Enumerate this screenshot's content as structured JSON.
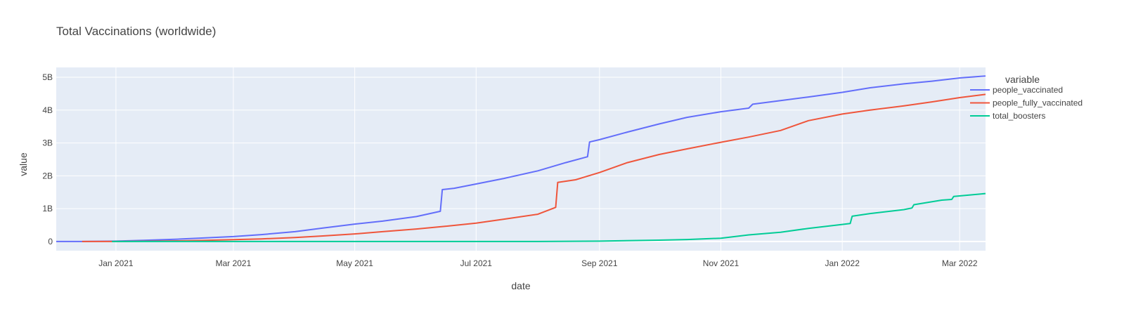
{
  "chart_data": {
    "type": "line",
    "title": "Total Vaccinations (worldwide)",
    "xlabel": "date",
    "ylabel": "value",
    "x_range": [
      "2020-12-02",
      "2022-03-14"
    ],
    "ylim": [
      -280000000,
      5300000000
    ],
    "x_ticks": [
      {
        "date": "2021-01-01",
        "label": "Jan 2021"
      },
      {
        "date": "2021-03-01",
        "label": "Mar 2021"
      },
      {
        "date": "2021-05-01",
        "label": "May 2021"
      },
      {
        "date": "2021-07-01",
        "label": "Jul 2021"
      },
      {
        "date": "2021-09-01",
        "label": "Sep 2021"
      },
      {
        "date": "2021-11-01",
        "label": "Nov 2021"
      },
      {
        "date": "2022-01-01",
        "label": "Jan 2022"
      },
      {
        "date": "2022-03-01",
        "label": "Mar 2022"
      }
    ],
    "y_ticks": [
      {
        "value": 0,
        "label": "0"
      },
      {
        "value": 1000000000,
        "label": "1B"
      },
      {
        "value": 2000000000,
        "label": "2B"
      },
      {
        "value": 3000000000,
        "label": "3B"
      },
      {
        "value": 4000000000,
        "label": "4B"
      },
      {
        "value": 5000000000,
        "label": "5B"
      }
    ],
    "legend_title": "variable",
    "legend_position": "right",
    "grid": true,
    "colors": {
      "plot_bg": "#e5ecf6",
      "grid": "#ffffff"
    },
    "series": [
      {
        "name": "people_vaccinated",
        "color": "#636efa",
        "points": [
          [
            "2020-12-02",
            0
          ],
          [
            "2020-12-15",
            1000000
          ],
          [
            "2021-01-01",
            10000000
          ],
          [
            "2021-01-15",
            35000000
          ],
          [
            "2021-02-01",
            70000000
          ],
          [
            "2021-02-15",
            110000000
          ],
          [
            "2021-03-01",
            150000000
          ],
          [
            "2021-03-15",
            210000000
          ],
          [
            "2021-04-01",
            300000000
          ],
          [
            "2021-04-15",
            410000000
          ],
          [
            "2021-05-01",
            530000000
          ],
          [
            "2021-05-15",
            620000000
          ],
          [
            "2021-06-01",
            760000000
          ],
          [
            "2021-06-13",
            920000000
          ],
          [
            "2021-06-14",
            1580000000
          ],
          [
            "2021-06-20",
            1620000000
          ],
          [
            "2021-07-01",
            1750000000
          ],
          [
            "2021-07-15",
            1920000000
          ],
          [
            "2021-08-01",
            2150000000
          ],
          [
            "2021-08-15",
            2400000000
          ],
          [
            "2021-08-26",
            2580000000
          ],
          [
            "2021-08-27",
            3030000000
          ],
          [
            "2021-09-01",
            3100000000
          ],
          [
            "2021-09-15",
            3330000000
          ],
          [
            "2021-10-01",
            3580000000
          ],
          [
            "2021-10-15",
            3780000000
          ],
          [
            "2021-11-01",
            3950000000
          ],
          [
            "2021-11-15",
            4060000000
          ],
          [
            "2021-11-17",
            4180000000
          ],
          [
            "2021-12-01",
            4290000000
          ],
          [
            "2021-12-15",
            4400000000
          ],
          [
            "2022-01-01",
            4540000000
          ],
          [
            "2022-01-15",
            4680000000
          ],
          [
            "2022-02-01",
            4800000000
          ],
          [
            "2022-02-15",
            4880000000
          ],
          [
            "2022-03-01",
            4980000000
          ],
          [
            "2022-03-14",
            5040000000
          ]
        ]
      },
      {
        "name": "people_fully_vaccinated",
        "color": "#ef553b",
        "points": [
          [
            "2020-12-15",
            0
          ],
          [
            "2021-01-01",
            1000000
          ],
          [
            "2021-01-15",
            8000000
          ],
          [
            "2021-02-01",
            20000000
          ],
          [
            "2021-02-15",
            35000000
          ],
          [
            "2021-03-01",
            55000000
          ],
          [
            "2021-03-15",
            80000000
          ],
          [
            "2021-04-01",
            120000000
          ],
          [
            "2021-04-15",
            170000000
          ],
          [
            "2021-05-01",
            230000000
          ],
          [
            "2021-05-15",
            300000000
          ],
          [
            "2021-06-01",
            380000000
          ],
          [
            "2021-06-15",
            460000000
          ],
          [
            "2021-07-01",
            560000000
          ],
          [
            "2021-07-15",
            680000000
          ],
          [
            "2021-08-01",
            830000000
          ],
          [
            "2021-08-10",
            1040000000
          ],
          [
            "2021-08-11",
            1800000000
          ],
          [
            "2021-08-20",
            1880000000
          ],
          [
            "2021-09-01",
            2100000000
          ],
          [
            "2021-09-15",
            2400000000
          ],
          [
            "2021-10-01",
            2650000000
          ],
          [
            "2021-10-15",
            2820000000
          ],
          [
            "2021-11-01",
            3020000000
          ],
          [
            "2021-11-15",
            3180000000
          ],
          [
            "2021-12-01",
            3380000000
          ],
          [
            "2021-12-15",
            3680000000
          ],
          [
            "2022-01-01",
            3880000000
          ],
          [
            "2022-01-15",
            4000000000
          ],
          [
            "2022-02-01",
            4130000000
          ],
          [
            "2022-02-15",
            4250000000
          ],
          [
            "2022-03-01",
            4380000000
          ],
          [
            "2022-03-14",
            4480000000
          ]
        ]
      },
      {
        "name": "total_boosters",
        "color": "#00cc96",
        "points": [
          [
            "2020-12-30",
            0
          ],
          [
            "2021-08-01",
            1000000
          ],
          [
            "2021-09-01",
            10000000
          ],
          [
            "2021-10-01",
            40000000
          ],
          [
            "2021-10-15",
            60000000
          ],
          [
            "2021-11-01",
            100000000
          ],
          [
            "2021-11-15",
            200000000
          ],
          [
            "2021-12-01",
            280000000
          ],
          [
            "2021-12-15",
            400000000
          ],
          [
            "2022-01-01",
            520000000
          ],
          [
            "2022-01-05",
            550000000
          ],
          [
            "2022-01-06",
            770000000
          ],
          [
            "2022-01-15",
            850000000
          ],
          [
            "2022-02-01",
            970000000
          ],
          [
            "2022-02-05",
            1020000000
          ],
          [
            "2022-02-06",
            1120000000
          ],
          [
            "2022-02-20",
            1260000000
          ],
          [
            "2022-02-25",
            1280000000
          ],
          [
            "2022-02-26",
            1370000000
          ],
          [
            "2022-03-14",
            1460000000
          ]
        ]
      }
    ]
  }
}
